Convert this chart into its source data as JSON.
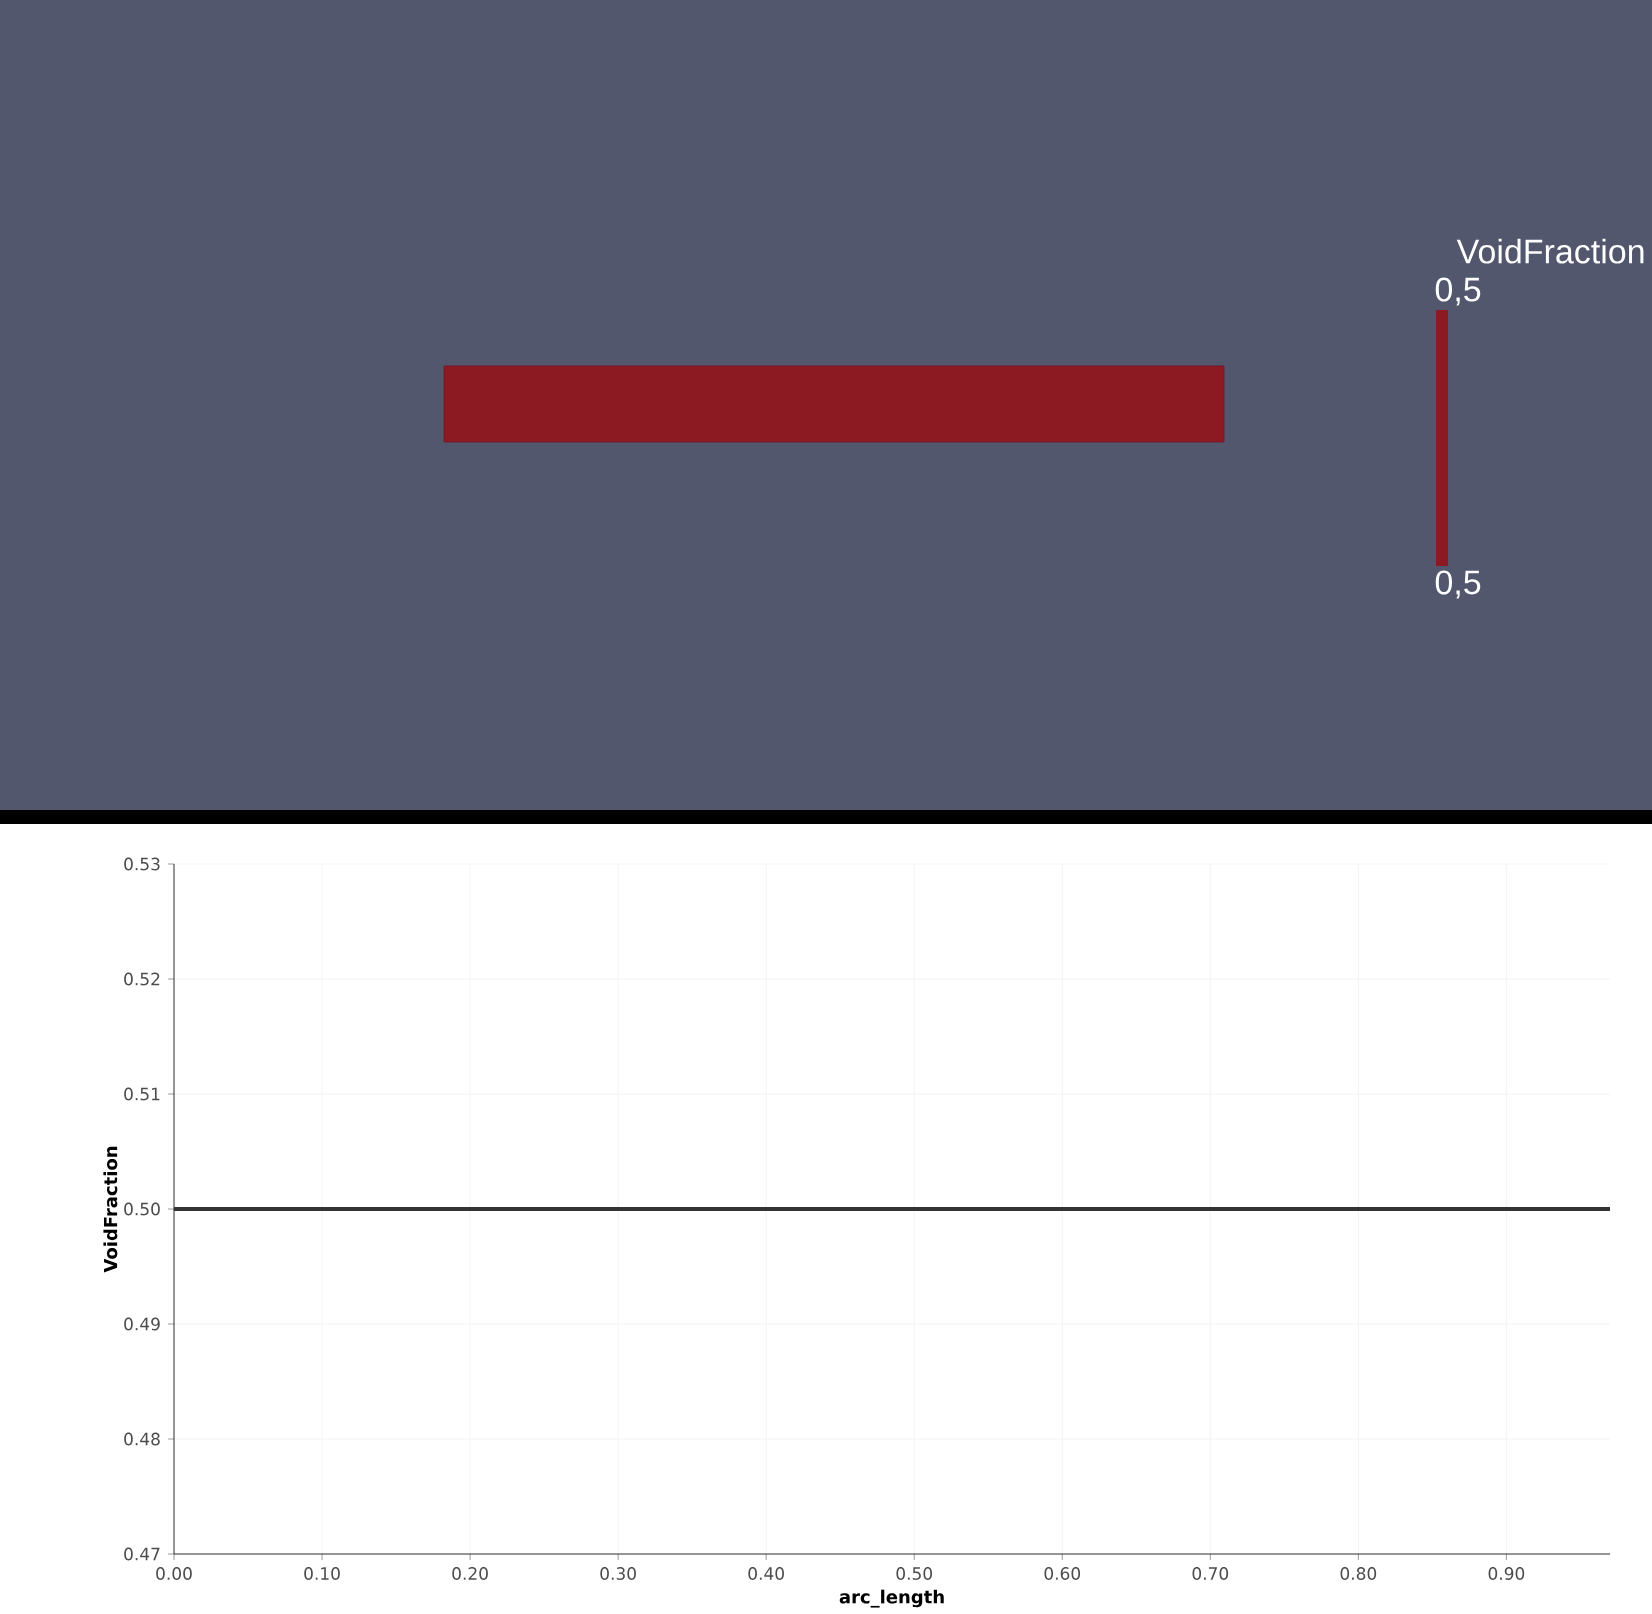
{
  "chart_data": [
    {
      "type": "other",
      "title": "VoidFraction",
      "annotations": [
        "0,5",
        "0,5"
      ]
    },
    {
      "type": "line",
      "x": [
        0,
        0.97
      ],
      "values": [
        0.5,
        0.5
      ],
      "color": "#333333",
      "grid": true,
      "xlabel": "arc_length",
      "ylabel": "VoidFraction",
      "xlim": [
        0,
        0.97
      ],
      "ylim": [
        0.47,
        0.53
      ],
      "xticks": [
        {
          "value": 0,
          "label": "0.00"
        },
        {
          "value": 0.1,
          "label": "0.10"
        },
        {
          "value": 0.2,
          "label": "0.20"
        },
        {
          "value": 0.3,
          "label": "0.30"
        },
        {
          "value": 0.4,
          "label": "0.40"
        },
        {
          "value": 0.5,
          "label": "0.50"
        },
        {
          "value": 0.6,
          "label": "0.60"
        },
        {
          "value": 0.7,
          "label": "0.70"
        },
        {
          "value": 0.8,
          "label": "0.80"
        },
        {
          "value": 0.9,
          "label": "0.90"
        }
      ],
      "yticks": [
        0.47,
        0.48,
        0.49,
        {
          "value": 0.5,
          "label": "0.50"
        },
        0.51,
        0.52,
        0.53
      ]
    }
  ]
}
